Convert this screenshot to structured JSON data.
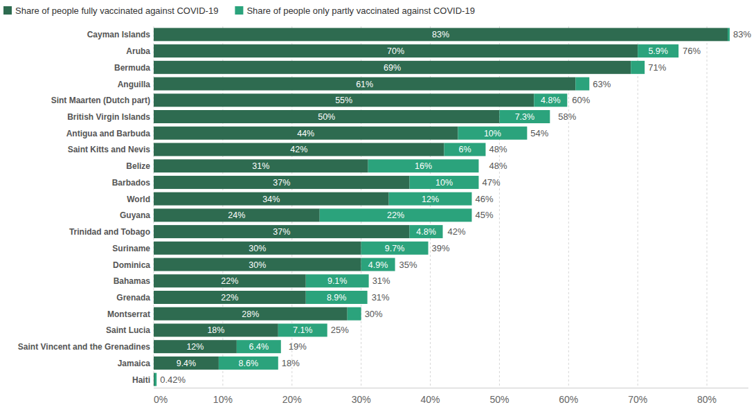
{
  "chart_data": {
    "type": "bar",
    "orientation": "horizontal",
    "stacked": true,
    "data_labels": true,
    "grid": true,
    "legend": "top",
    "categories": [
      "Cayman Islands",
      "Aruba",
      "Bermuda",
      "Anguilla",
      "Sint Maarten (Dutch part)",
      "British Virgin Islands",
      "Antigua and Barbuda",
      "Saint Kitts and Nevis",
      "Belize",
      "Barbados",
      "World",
      "Guyana",
      "Trinidad and Tobago",
      "Suriname",
      "Dominica",
      "Bahamas",
      "Grenada",
      "Montserrat",
      "Saint Lucia",
      "Saint Vincent and the Grenadines",
      "Jamaica",
      "Haiti"
    ],
    "series": [
      {
        "name": "Share of people fully vaccinated against COVID-19",
        "color": "#2e6b50",
        "values": [
          83,
          70,
          69,
          61,
          55,
          50,
          44,
          42,
          31,
          37,
          34,
          24,
          37,
          30,
          30,
          22,
          22,
          28,
          18,
          12,
          9.4,
          0.1
        ],
        "value_labels": [
          "83%",
          "70%",
          "69%",
          "61%",
          "55%",
          "50%",
          "44%",
          "42%",
          "31%",
          "37%",
          "34%",
          "24%",
          "37%",
          "30%",
          "30%",
          "22%",
          "22%",
          "28%",
          "18%",
          "12%",
          "9.4%",
          null
        ]
      },
      {
        "name": "Share of people only partly vaccinated against COVID-19",
        "color": "#2ba37c",
        "values": [
          0.3,
          5.9,
          2,
          2,
          4.8,
          7.3,
          10,
          6,
          16,
          10,
          12,
          22,
          4.8,
          9.7,
          4.9,
          9.1,
          8.9,
          2,
          7.1,
          6.4,
          8.6,
          0.32
        ],
        "value_labels": [
          null,
          "5.9%",
          null,
          null,
          "4.8%",
          "7.3%",
          "10%",
          "6%",
          "16%",
          "10%",
          "12%",
          "22%",
          "4.8%",
          "9.7%",
          "4.9%",
          "9.1%",
          "8.9%",
          null,
          "7.1%",
          "6.4%",
          "8.6%",
          null
        ]
      }
    ],
    "totals": [
      83,
      76,
      71,
      63,
      60,
      58,
      54,
      48,
      48,
      47,
      46,
      45,
      42,
      39,
      35,
      31,
      31,
      30,
      25,
      19,
      18,
      0.42
    ],
    "total_labels": [
      "83%",
      "76%",
      "71%",
      "63%",
      "60%",
      "58%",
      "54%",
      "48%",
      "48%",
      "47%",
      "46%",
      "45%",
      "42%",
      "39%",
      "35%",
      "31%",
      "31%",
      "30%",
      "25%",
      "19%",
      "18%",
      "0.42%"
    ],
    "xlim": [
      0,
      86
    ],
    "xticks": [
      {
        "value": 0,
        "label": "0%"
      },
      {
        "value": 10,
        "label": "10%"
      },
      {
        "value": 20,
        "label": "20%"
      },
      {
        "value": 30,
        "label": "30%"
      },
      {
        "value": 40,
        "label": "40%"
      },
      {
        "value": 50,
        "label": "50%"
      },
      {
        "value": 60,
        "label": "60%"
      },
      {
        "value": 70,
        "label": "70%"
      },
      {
        "value": 80,
        "label": "80%"
      }
    ]
  }
}
